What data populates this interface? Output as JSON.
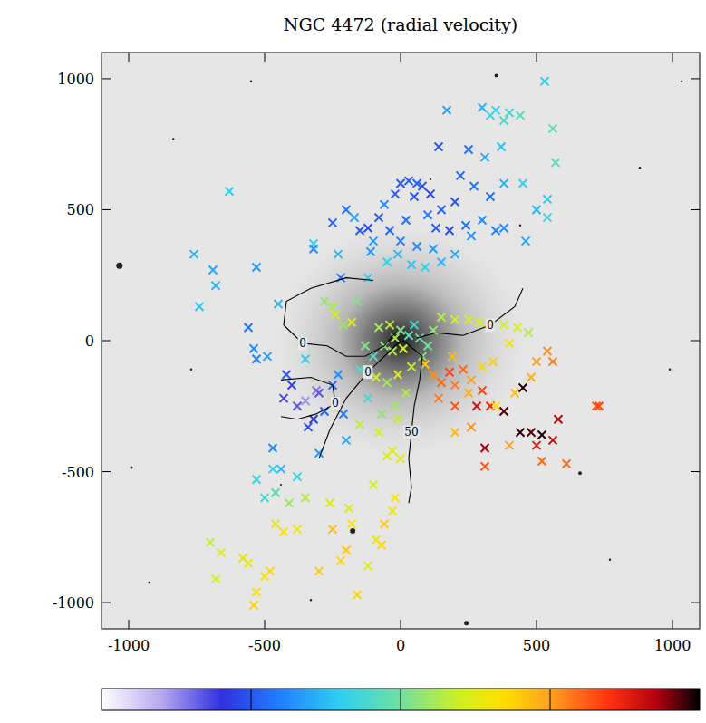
{
  "chart_data": {
    "type": "scatter",
    "title": "NGC 4472 (radial velocity)",
    "marker": "x",
    "xlim": [
      -1100,
      1100
    ],
    "ylim": [
      -1100,
      1100
    ],
    "xticks": [
      -1000,
      -500,
      0,
      500,
      1000
    ],
    "yticks": [
      -1000,
      -500,
      0,
      500,
      1000
    ],
    "x": [
      530,
      400,
      350,
      300,
      330,
      380,
      440,
      560,
      570,
      170,
      370,
      310,
      380,
      450,
      500,
      540,
      540,
      460,
      250,
      140,
      220,
      270,
      330,
      350,
      380,
      300,
      0,
      30,
      60,
      80,
      -20,
      50,
      110,
      150,
      200,
      -80,
      -120,
      -150,
      -40,
      20,
      100,
      130,
      180,
      240,
      260,
      -200,
      -250,
      -170,
      -60,
      0,
      60,
      120,
      -100,
      -10,
      40,
      90,
      150,
      200,
      -50,
      -110,
      -630,
      -760,
      -690,
      -680,
      -740,
      -530,
      -450,
      -320,
      -320,
      -230,
      -220,
      -120,
      -560,
      -540,
      -530,
      -490,
      -420,
      -400,
      -430,
      -380,
      -350,
      -310,
      -300,
      -320,
      -340,
      -280,
      -250,
      -230,
      -210,
      -200,
      -300,
      -470,
      -530,
      -440,
      -380,
      -350,
      -360,
      -280,
      -250,
      -240,
      -210,
      -180,
      -160,
      -80,
      -40,
      -20,
      0,
      30,
      50,
      70,
      10,
      -30,
      -60,
      -100,
      -130,
      -150,
      -90,
      -50,
      -10,
      40,
      80,
      100,
      20,
      -20,
      -70,
      -120,
      -150,
      -80,
      -30,
      0,
      -50,
      -10,
      150,
      200,
      250,
      290,
      330,
      380,
      430,
      470,
      400,
      120,
      90,
      120,
      150,
      180,
      200,
      230,
      260,
      140,
      200,
      250,
      300,
      340,
      190,
      300,
      330,
      280,
      350,
      420,
      450,
      380,
      440,
      480,
      560,
      520,
      310,
      520,
      610,
      500,
      580,
      540,
      560,
      500,
      480,
      720,
      730,
      260,
      200,
      310,
      400,
      -100,
      -20,
      -30,
      -60,
      -90,
      -70,
      -120,
      -180,
      -200,
      -220,
      -190,
      -260,
      -250,
      -160,
      -300,
      -380,
      -430,
      -460,
      -480,
      -500,
      -530,
      -540,
      -560,
      -580,
      -660,
      -680,
      -700,
      -350,
      -410,
      -460,
      -500,
      -470
    ],
    "values": [
      990,
      870,
      880,
      890,
      860,
      840,
      860,
      810,
      680,
      880,
      740,
      700,
      600,
      600,
      500,
      540,
      470,
      380,
      730,
      740,
      630,
      590,
      550,
      420,
      430,
      460,
      600,
      610,
      600,
      590,
      560,
      550,
      560,
      500,
      530,
      470,
      430,
      420,
      420,
      460,
      480,
      430,
      420,
      440,
      400,
      500,
      450,
      470,
      520,
      380,
      360,
      350,
      380,
      330,
      290,
      280,
      300,
      330,
      300,
      340,
      570,
      330,
      270,
      210,
      130,
      280,
      140,
      370,
      350,
      330,
      240,
      240,
      50,
      -30,
      -70,
      -60,
      -130,
      -170,
      -220,
      -250,
      -230,
      -190,
      -200,
      -300,
      -330,
      -270,
      -170,
      -130,
      -280,
      -380,
      -430,
      -410,
      -530,
      -490,
      -520,
      -70,
      0,
      150,
      130,
      100,
      60,
      70,
      150,
      50,
      60,
      10,
      40,
      20,
      60,
      10,
      -30,
      -40,
      -20,
      -60,
      -20,
      -110,
      -140,
      -160,
      -130,
      -100,
      -60,
      -20,
      -200,
      -250,
      -280,
      -220,
      -320,
      -350,
      -420,
      -450,
      -440,
      -300,
      90,
      80,
      80,
      70,
      70,
      60,
      50,
      30,
      -10,
      40,
      -90,
      -130,
      -160,
      -120,
      -170,
      -110,
      -150,
      -220,
      -250,
      -200,
      -100,
      -80,
      -60,
      -190,
      -250,
      -250,
      -250,
      -200,
      -180,
      -270,
      -350,
      -350,
      -380,
      -360,
      -410,
      -460,
      -470,
      -400,
      -300,
      -40,
      -80,
      -80,
      -140,
      -250,
      -250,
      -330,
      -350,
      -480,
      -400,
      -550,
      -600,
      -650,
      -700,
      -760,
      -780,
      -860,
      -700,
      -800,
      -840,
      -640,
      -620,
      -720,
      -970,
      -880,
      -720,
      -730,
      -700,
      -880,
      -900,
      -960,
      -1010,
      -850,
      -830,
      -810,
      -910,
      -770,
      -600,
      -620,
      -580,
      -600,
      -490
    ],
    "color_values": [
      -60,
      -40,
      -60,
      -80,
      -50,
      -30,
      -30,
      -20,
      -20,
      -100,
      -70,
      -90,
      -80,
      -60,
      -80,
      -70,
      -50,
      -90,
      -130,
      -150,
      -140,
      -130,
      -130,
      -120,
      -110,
      -110,
      -150,
      -150,
      -140,
      -150,
      -150,
      -150,
      -160,
      -140,
      -150,
      -150,
      -160,
      -150,
      -140,
      -130,
      -120,
      -150,
      -160,
      -130,
      -110,
      -130,
      -140,
      -100,
      -110,
      -120,
      -110,
      -100,
      -100,
      -80,
      -70,
      -60,
      -80,
      -90,
      -60,
      -100,
      -60,
      -80,
      -90,
      -80,
      -70,
      -100,
      -80,
      -60,
      -110,
      -80,
      -130,
      -60,
      -130,
      -110,
      -120,
      -100,
      -150,
      -170,
      -190,
      -200,
      -230,
      -220,
      -200,
      -170,
      -160,
      -140,
      -140,
      -110,
      -120,
      -90,
      -100,
      -110,
      -50,
      -80,
      -50,
      -60,
      -40,
      20,
      40,
      60,
      30,
      70,
      10,
      30,
      50,
      40,
      10,
      -20,
      -40,
      -10,
      60,
      40,
      20,
      -20,
      10,
      -30,
      60,
      30,
      70,
      50,
      20,
      0,
      40,
      30,
      20,
      -40,
      50,
      60,
      80,
      70,
      70,
      50,
      40,
      60,
      70,
      60,
      80,
      60,
      70,
      40,
      90,
      20,
      120,
      160,
      180,
      200,
      170,
      180,
      150,
      170,
      190,
      140,
      110,
      120,
      130,
      200,
      220,
      240,
      100,
      130,
      290,
      280,
      290,
      280,
      250,
      290,
      260,
      180,
      180,
      230,
      250,
      160,
      170,
      150,
      140,
      190,
      200,
      160,
      130,
      190,
      150,
      60,
      100,
      90,
      120,
      90,
      110,
      80,
      100,
      120,
      110,
      70,
      80,
      130,
      110,
      120,
      90,
      100,
      80,
      110,
      90,
      100,
      110,
      90,
      80,
      70,
      60,
      50,
      40,
      30,
      -20,
      -40,
      -60
    ],
    "colorbar": {
      "range": [
        -300,
        300
      ],
      "ticks": [
        -150,
        0,
        150
      ]
    },
    "contours": [
      {
        "label": "0",
        "x": [
          -100,
          -200,
          -330,
          -420,
          -430,
          -360,
          -270,
          -200,
          -130,
          -60,
          -20
        ],
        "y": [
          230,
          240,
          200,
          150,
          60,
          -10,
          -20,
          -60,
          -60,
          -20,
          30
        ]
      },
      {
        "label": "0",
        "x": [
          -440,
          -330,
          -250,
          -240,
          -310,
          -380,
          -440
        ],
        "y": [
          -150,
          -140,
          -170,
          -240,
          -280,
          -300,
          -290
        ]
      },
      {
        "label": "0",
        "x": [
          -300,
          -260,
          -200,
          -120,
          -40,
          0
        ],
        "y": [
          -450,
          -340,
          -220,
          -120,
          -40,
          0
        ]
      },
      {
        "label": "50",
        "x": [
          10,
          80,
          70,
          50,
          40,
          30,
          40,
          30
        ],
        "y": [
          0,
          -60,
          -150,
          -250,
          -350,
          -450,
          -560,
          -620
        ]
      },
      {
        "label": "0",
        "x": [
          60,
          130,
          230,
          330,
          420,
          450
        ],
        "y": [
          10,
          30,
          20,
          60,
          130,
          200
        ]
      }
    ]
  }
}
